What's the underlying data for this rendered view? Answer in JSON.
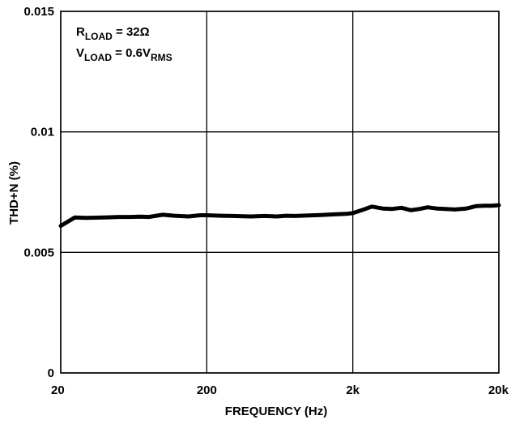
{
  "chart_data": {
    "type": "line",
    "title": "",
    "xlabel": "FREQUENCY (Hz)",
    "ylabel": "THD+N (%)",
    "xscale": "log",
    "xlim": [
      20,
      20000
    ],
    "ylim": [
      0,
      0.015
    ],
    "xticks": [
      20,
      200,
      2000,
      20000
    ],
    "xtick_labels": [
      "20",
      "200",
      "2k",
      "20k"
    ],
    "yticks": [
      0,
      0.005,
      0.01,
      0.015
    ],
    "ytick_labels": [
      "0",
      "0.005",
      "0.01",
      "0.015"
    ],
    "grid": true,
    "annotations": [
      {
        "main": "R",
        "sub": "LOAD",
        "rest": " = 32Ω"
      },
      {
        "main": "V",
        "sub": "LOAD",
        "rest": " = 0.6V",
        "sub2": "RMS"
      }
    ],
    "series": [
      {
        "color": "#000000",
        "x": [
          20,
          25,
          30,
          40,
          50,
          60,
          70,
          80,
          100,
          120,
          150,
          180,
          200,
          250,
          300,
          400,
          500,
          600,
          700,
          800,
          1000,
          1200,
          1500,
          1800,
          2000,
          2300,
          2700,
          3200,
          3700,
          4300,
          5000,
          5700,
          6500,
          7500,
          8600,
          10000,
          12000,
          14000,
          16000,
          18000,
          20000
        ],
        "y": [
          0.0061,
          0.00645,
          0.00643,
          0.00645,
          0.00647,
          0.00647,
          0.00648,
          0.00647,
          0.00656,
          0.00652,
          0.00649,
          0.00654,
          0.00654,
          0.00652,
          0.00651,
          0.00649,
          0.00651,
          0.00649,
          0.00652,
          0.00651,
          0.00653,
          0.00655,
          0.00658,
          0.0066,
          0.00663,
          0.00675,
          0.0069,
          0.00682,
          0.0068,
          0.00685,
          0.00675,
          0.0068,
          0.00687,
          0.00682,
          0.0068,
          0.00678,
          0.00682,
          0.00692,
          0.00694,
          0.00694,
          0.00696
        ]
      }
    ]
  }
}
